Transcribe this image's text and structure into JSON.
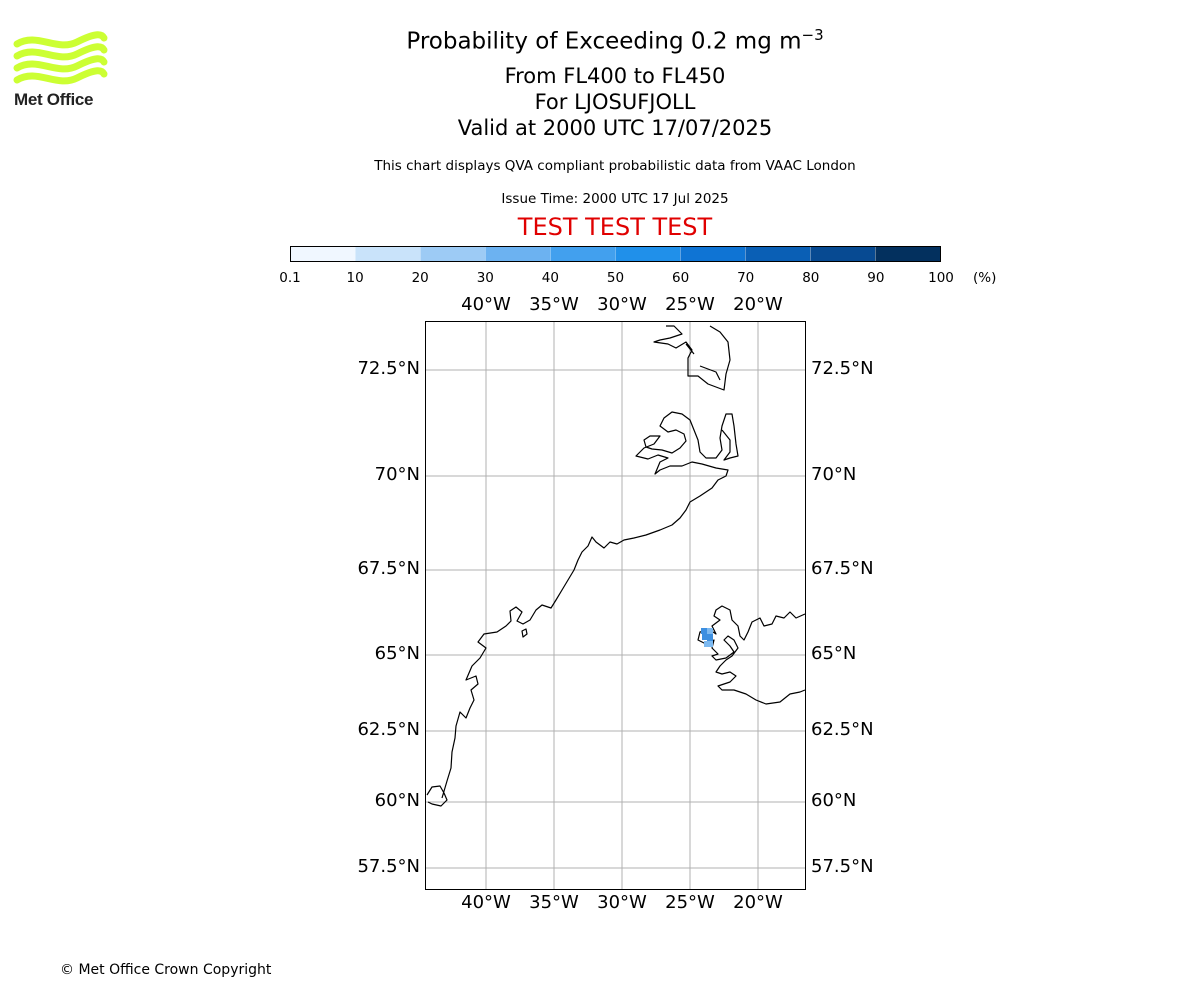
{
  "logo": {
    "text": "Met Office",
    "color": "#ccff33"
  },
  "title": {
    "line1_prefix": "Probability of Exceeding 0.2 mg m",
    "line1_sup": "−3",
    "line2": "From FL400 to FL450",
    "line3": "For LJOSUFJOLL",
    "line4": "Valid at 2000 UTC 17/07/2025"
  },
  "description": "This chart displays QVA compliant probabilistic data from VAAC London",
  "issue_time": "Issue Time: 2000 UTC 17 Jul 2025",
  "test_banner": "TEST TEST TEST",
  "colorbar": {
    "ticks": [
      "0.1",
      "10",
      "20",
      "30",
      "40",
      "50",
      "60",
      "70",
      "80",
      "90",
      "100"
    ],
    "unit": "(%)",
    "colors": [
      "#f0f7ff",
      "#c9e3fa",
      "#9dcbf5",
      "#6cb2f1",
      "#42a0ee",
      "#2090ea",
      "#0f74d4",
      "#0a5fb5",
      "#074a92",
      "#03305e"
    ]
  },
  "map": {
    "lon_labels": [
      "40°W",
      "35°W",
      "30°W",
      "25°W",
      "20°W"
    ],
    "lat_labels": [
      "72.5°N",
      "70°N",
      "67.5°N",
      "65°N",
      "62.5°N",
      "60°N",
      "57.5°N"
    ],
    "volcano_colors": [
      "#3d8fe0",
      "#7db9f0"
    ]
  },
  "copyright": "© Met Office Crown Copyright"
}
